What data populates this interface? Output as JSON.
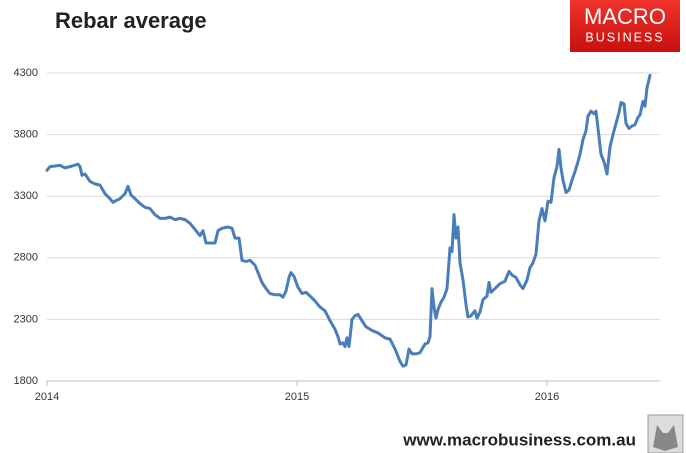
{
  "chart_data": {
    "type": "line",
    "title": "Rebar average",
    "color": "#4a7ebb",
    "x": [
      2014.0,
      2014.012,
      2014.052,
      2014.072,
      2014.092,
      2014.124,
      2014.132,
      2014.14,
      2014.152,
      2014.172,
      2014.192,
      2014.212,
      2014.232,
      2014.252,
      2014.264,
      2014.272,
      2014.292,
      2014.312,
      2014.324,
      2014.336,
      2014.352,
      2014.372,
      2014.392,
      2014.412,
      2014.432,
      2014.452,
      2014.472,
      2014.492,
      2014.512,
      2014.532,
      2014.552,
      2014.572,
      2014.592,
      2014.612,
      2014.624,
      2014.636,
      2014.652,
      2014.672,
      2014.684,
      2014.7,
      2014.724,
      2014.74,
      2014.752,
      2014.768,
      2014.78,
      2014.796,
      2014.812,
      2014.832,
      2014.844,
      2014.86,
      2014.876,
      2014.892,
      2014.912,
      2014.932,
      2014.944,
      2014.956,
      2014.968,
      2014.976,
      2014.988,
      2015.004,
      2015.02,
      2015.036,
      2015.052,
      2015.072,
      2015.092,
      2015.112,
      2015.132,
      2015.152,
      2015.164,
      2015.172,
      2015.184,
      2015.192,
      2015.2,
      2015.208,
      2015.22,
      2015.232,
      2015.244,
      2015.26,
      2015.276,
      2015.3,
      2015.324,
      2015.352,
      2015.372,
      2015.392,
      2015.412,
      2015.424,
      2015.436,
      2015.448,
      2015.46,
      2015.476,
      2015.492,
      2015.512,
      2015.524,
      2015.532,
      2015.54,
      2015.548,
      2015.556,
      2015.564,
      2015.576,
      2015.588,
      2015.6,
      2015.612,
      2015.62,
      2015.628,
      2015.636,
      2015.644,
      2015.652,
      2015.664,
      2015.676,
      2015.684,
      2015.696,
      2015.712,
      2015.72,
      2015.732,
      2015.744,
      2015.76,
      2015.768,
      2015.776,
      2015.792,
      2015.812,
      2015.832,
      2015.848,
      2015.86,
      2015.876,
      2015.892,
      2015.904,
      2015.92,
      2015.932,
      2015.944,
      2015.956,
      2015.968,
      2015.98,
      2015.992,
      2016.004,
      2016.016,
      2016.028,
      2016.04,
      2016.048,
      2016.056,
      2016.064,
      2016.076,
      2016.088,
      2016.1,
      2016.112,
      2016.124,
      2016.132,
      2016.144,
      2016.156,
      2016.164,
      2016.176,
      2016.188,
      2016.196,
      2016.204,
      2016.216,
      2016.228,
      2016.24,
      2016.252,
      2016.264,
      2016.276,
      2016.288,
      2016.296,
      2016.308,
      2016.316,
      2016.328,
      2016.34,
      2016.352,
      2016.364,
      2016.372,
      2016.384,
      2016.392,
      2016.4,
      2016.412
    ],
    "values": [
      3510,
      3540,
      3550,
      3530,
      3540,
      3560,
      3540,
      3470,
      3480,
      3420,
      3400,
      3390,
      3320,
      3280,
      3250,
      3260,
      3280,
      3320,
      3380,
      3310,
      3280,
      3240,
      3210,
      3200,
      3150,
      3120,
      3120,
      3130,
      3110,
      3120,
      3110,
      3080,
      3030,
      2980,
      3020,
      2920,
      2920,
      2920,
      3020,
      3040,
      3050,
      3040,
      2960,
      2960,
      2780,
      2770,
      2780,
      2740,
      2680,
      2600,
      2550,
      2510,
      2500,
      2500,
      2480,
      2530,
      2640,
      2680,
      2650,
      2560,
      2510,
      2520,
      2490,
      2450,
      2400,
      2370,
      2290,
      2220,
      2160,
      2100,
      2110,
      2080,
      2150,
      2080,
      2300,
      2330,
      2340,
      2290,
      2240,
      2210,
      2190,
      2150,
      2140,
      2060,
      1960,
      1920,
      1930,
      2060,
      2020,
      2020,
      2030,
      2100,
      2110,
      2160,
      2550,
      2400,
      2310,
      2380,
      2440,
      2480,
      2550,
      2880,
      2850,
      3150,
      2960,
      3050,
      2760,
      2620,
      2420,
      2320,
      2330,
      2370,
      2310,
      2360,
      2460,
      2490,
      2600,
      2520,
      2550,
      2590,
      2610,
      2690,
      2660,
      2640,
      2580,
      2550,
      2620,
      2720,
      2760,
      2830,
      3100,
      3200,
      3100,
      3260,
      3250,
      3450,
      3540,
      3680,
      3530,
      3430,
      3330,
      3350,
      3430,
      3500,
      3580,
      3640,
      3760,
      3830,
      3950,
      3990,
      3970,
      3990,
      3850,
      3640,
      3580,
      3480,
      3700,
      3800,
      3890,
      3980,
      4060,
      4050,
      3890,
      3850,
      3870,
      3880,
      3940,
      3960,
      4070,
      4030,
      4180,
      4280
    ],
    "xlim": [
      2014,
      2016.45
    ],
    "xticks": [
      2014,
      2015,
      2016
    ],
    "ylim": [
      1800,
      4300
    ],
    "yticks": [
      1800,
      2300,
      2800,
      3300,
      3800,
      4300
    ],
    "grid": true
  },
  "branding": {
    "logo_top": "MACRO",
    "logo_bottom": "BUSINESS",
    "website": "www.macrobusiness.com.au"
  }
}
